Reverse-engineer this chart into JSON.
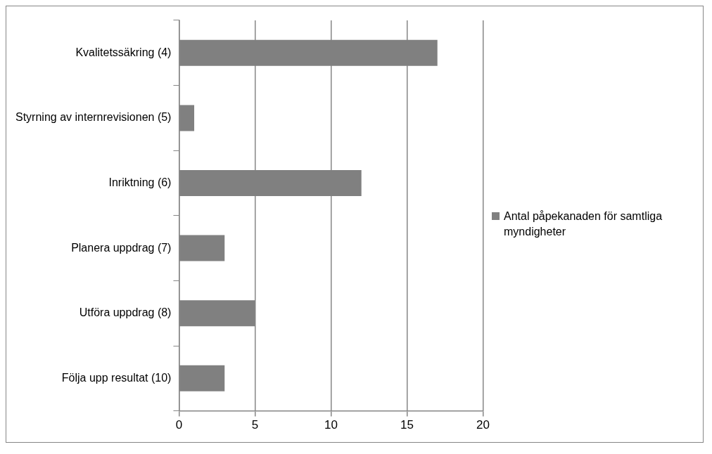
{
  "chart_data": {
    "type": "bar",
    "orientation": "horizontal",
    "categories": [
      "Kvalitetssäkring (4)",
      "Styrning av internrevisionen (5)",
      "Inriktning (6)",
      "Planera uppdrag (7)",
      "Utföra uppdrag (8)",
      "Följa upp resultat (10)"
    ],
    "series": [
      {
        "name": "Antal påpekanaden för samtliga myndigheter",
        "color": "#808080",
        "values": [
          17,
          1,
          12,
          3,
          5,
          3
        ]
      }
    ],
    "xlim": [
      0,
      20
    ],
    "xticks": [
      0,
      5,
      10,
      15,
      20
    ],
    "grid": "x",
    "legend": "right"
  }
}
